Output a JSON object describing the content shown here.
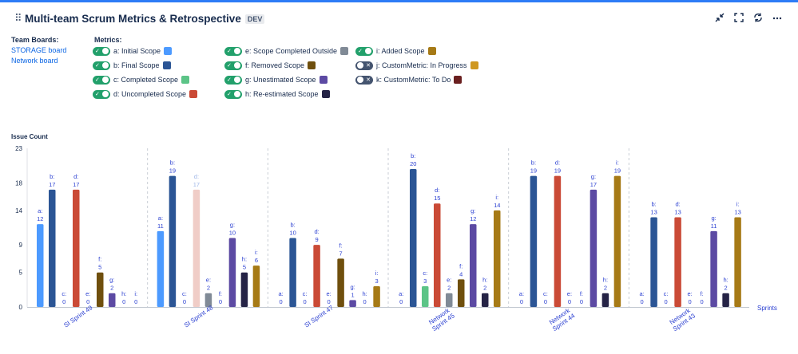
{
  "header": {
    "title": "Multi-team Scrum Metrics & Retrospective",
    "badge": "DEV",
    "icons": [
      "drag-handle-icon",
      "shrink-icon",
      "fullscreen-icon",
      "refresh-icon",
      "more-icon"
    ]
  },
  "boards": {
    "label": "Team Boards:",
    "items": [
      "STORAGE board",
      "Network board"
    ]
  },
  "metrics": {
    "label": "Metrics:",
    "items": [
      {
        "label": "a: Initial Scope",
        "on": true,
        "color": "#4c9aff"
      },
      {
        "label": "b: Final Scope",
        "on": true,
        "color": "#2b5595"
      },
      {
        "label": "c: Completed Scope",
        "on": true,
        "color": "#5cc487"
      },
      {
        "label": "d: Uncompleted Scope",
        "on": true,
        "color": "#ca4a36"
      },
      {
        "label": "e: Scope Completed Outside",
        "on": true,
        "color": "#808a96"
      },
      {
        "label": "f: Removed Scope",
        "on": true,
        "color": "#6f4f0d"
      },
      {
        "label": "g: Unestimated Scope",
        "on": true,
        "color": "#5c4aa3"
      },
      {
        "label": "h: Re-estimated Scope",
        "on": true,
        "color": "#252346"
      },
      {
        "label": "i: Added Scope",
        "on": true,
        "color": "#a67a16"
      },
      {
        "label": "j: CustomMetric: In Progress",
        "on": false,
        "color": "#cf9821"
      },
      {
        "label": "k: CustomMetric: To Do",
        "on": false,
        "color": "#6a1f1f"
      }
    ]
  },
  "chart_data": {
    "type": "bar",
    "title": "",
    "ylabel": "Issue Count",
    "xlabel": "Sprints",
    "ylim": [
      0,
      23
    ],
    "yticks": [
      0,
      5,
      9,
      14,
      18,
      23
    ],
    "series_keys": [
      "a",
      "b",
      "c",
      "d",
      "e",
      "f",
      "g",
      "h",
      "i"
    ],
    "colors": [
      "#4c9aff",
      "#2b5595",
      "#5cc487",
      "#ca4a36",
      "#808a96",
      "#6f4f0d",
      "#5c4aa3",
      "#252346",
      "#a67a16"
    ],
    "categories": [
      "SI Sprint 49",
      "SI Sprint 48",
      "SI Sprint 47",
      "Network Sprint 45",
      "Network Sprint 44",
      "Network Sprint 43"
    ],
    "values": [
      [
        12,
        17,
        0,
        17,
        0,
        5,
        2,
        0,
        0
      ],
      [
        11,
        19,
        0,
        17,
        2,
        0,
        10,
        5,
        6
      ],
      [
        0,
        10,
        0,
        9,
        0,
        7,
        1,
        0,
        3
      ],
      [
        0,
        20,
        3,
        15,
        2,
        4,
        12,
        2,
        14
      ],
      [
        0,
        19,
        0,
        19,
        0,
        0,
        17,
        2,
        19
      ],
      [
        0,
        13,
        0,
        13,
        0,
        0,
        11,
        2,
        13
      ]
    ],
    "faded": [
      [
        1,
        3
      ]
    ]
  }
}
